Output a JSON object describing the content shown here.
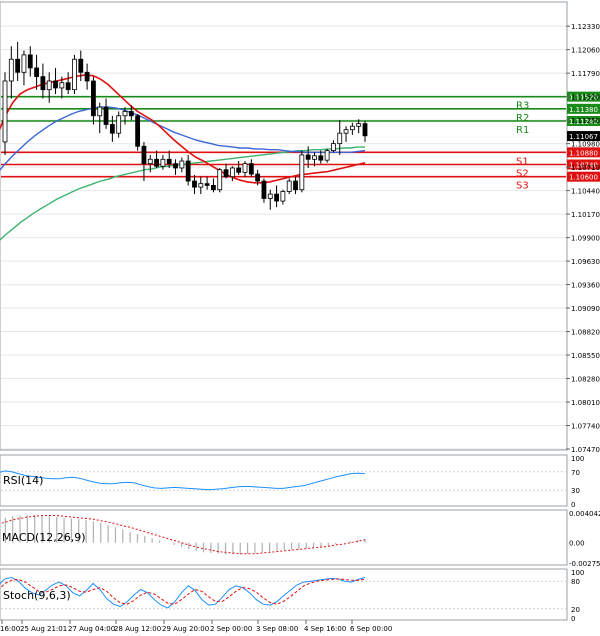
{
  "chart_data": {
    "type": "candlestick",
    "main": {
      "y_ticks": [
        "1.12330",
        "1.12060",
        "1.11790",
        "1.11520",
        "1.11250",
        "1.10980",
        "1.10710",
        "1.10440",
        "1.10170",
        "1.09900",
        "1.09630",
        "1.09360",
        "1.09090",
        "1.08820",
        "1.08550",
        "1.08280",
        "1.08010",
        "1.07740",
        "1.07470"
      ],
      "ylim": [
        1.0747,
        1.1247
      ],
      "current_price": "1.11067",
      "levels": [
        {
          "name": "R3",
          "price": 1.1152,
          "label": "1.11520",
          "color": "#1a8a1a"
        },
        {
          "name": "R2",
          "price": 1.1138,
          "label": "1.11380",
          "color": "#1a8a1a"
        },
        {
          "name": "R1",
          "price": 1.1124,
          "label": "1.11240",
          "color": "#1a8a1a"
        },
        {
          "name": "S1",
          "price": 1.1088,
          "label": "1.10880",
          "color": "#e01010"
        },
        {
          "name": "S2",
          "price": 1.1074,
          "label": "1.10740",
          "color": "#e01010"
        },
        {
          "name": "S3",
          "price": 1.106,
          "label": "1.10600",
          "color": "#e01010"
        }
      ],
      "candles": [
        [
          1.11,
          1.118,
          1.1085,
          1.117
        ],
        [
          1.117,
          1.121,
          1.115,
          1.1195
        ],
        [
          1.1195,
          1.1215,
          1.117,
          1.118
        ],
        [
          1.118,
          1.1205,
          1.1165,
          1.12
        ],
        [
          1.12,
          1.121,
          1.1175,
          1.1185
        ],
        [
          1.1185,
          1.12,
          1.116,
          1.1175
        ],
        [
          1.1175,
          1.119,
          1.115,
          1.116
        ],
        [
          1.116,
          1.118,
          1.1145,
          1.117
        ],
        [
          1.117,
          1.1185,
          1.1155,
          1.1162
        ],
        [
          1.1162,
          1.1175,
          1.115,
          1.1168
        ],
        [
          1.1168,
          1.118,
          1.1155,
          1.116
        ],
        [
          1.116,
          1.12,
          1.1155,
          1.1195
        ],
        [
          1.1195,
          1.1205,
          1.117,
          1.118
        ],
        [
          1.118,
          1.119,
          1.116,
          1.117
        ],
        [
          1.117,
          1.1175,
          1.112,
          1.113
        ],
        [
          1.113,
          1.1145,
          1.111,
          1.114
        ],
        [
          1.114,
          1.115,
          1.1115,
          1.112
        ],
        [
          1.112,
          1.113,
          1.11,
          1.111
        ],
        [
          1.111,
          1.1135,
          1.1105,
          1.113
        ],
        [
          1.113,
          1.114,
          1.112,
          1.1135
        ],
        [
          1.1135,
          1.1142,
          1.1125,
          1.113
        ],
        [
          1.113,
          1.1132,
          1.109,
          1.1095
        ],
        [
          1.1095,
          1.11,
          1.1055,
          1.1075
        ],
        [
          1.1075,
          1.1085,
          1.1065,
          1.108
        ],
        [
          1.108,
          1.109,
          1.107,
          1.1072
        ],
        [
          1.1072,
          1.1085,
          1.1068,
          1.108
        ],
        [
          1.108,
          1.109,
          1.107,
          1.1075
        ],
        [
          1.1075,
          1.108,
          1.1062,
          1.107
        ],
        [
          1.107,
          1.1082,
          1.1065,
          1.1078
        ],
        [
          1.1078,
          1.1085,
          1.105,
          1.1055
        ],
        [
          1.1055,
          1.1062,
          1.104,
          1.1048
        ],
        [
          1.1048,
          1.106,
          1.104,
          1.1052
        ],
        [
          1.1052,
          1.106,
          1.1045,
          1.105
        ],
        [
          1.105,
          1.1058,
          1.1042,
          1.1045
        ],
        [
          1.1045,
          1.107,
          1.1042,
          1.1068
        ],
        [
          1.1068,
          1.1075,
          1.1058,
          1.106
        ],
        [
          1.106,
          1.1072,
          1.1055,
          1.107
        ],
        [
          1.107,
          1.1078,
          1.1062,
          1.1065
        ],
        [
          1.1065,
          1.1078,
          1.106,
          1.1075
        ],
        [
          1.1075,
          1.108,
          1.106,
          1.1063
        ],
        [
          1.1063,
          1.1068,
          1.105,
          1.1055
        ],
        [
          1.1055,
          1.1058,
          1.103,
          1.1035
        ],
        [
          1.1035,
          1.1045,
          1.1022,
          1.104
        ],
        [
          1.104,
          1.105,
          1.1025,
          1.1032
        ],
        [
          1.1032,
          1.1045,
          1.1028,
          1.1043
        ],
        [
          1.1043,
          1.1058,
          1.104,
          1.1055
        ],
        [
          1.1055,
          1.106,
          1.104,
          1.1045
        ],
        [
          1.1045,
          1.109,
          1.1042,
          1.1085
        ],
        [
          1.1085,
          1.1095,
          1.107,
          1.108
        ],
        [
          1.108,
          1.1088,
          1.1072,
          1.1084
        ],
        [
          1.1084,
          1.109,
          1.1075,
          1.1079
        ],
        [
          1.1079,
          1.1092,
          1.1076,
          1.109
        ],
        [
          1.109,
          1.1102,
          1.1088,
          1.1098
        ],
        [
          1.1098,
          1.1125,
          1.1085,
          1.111
        ],
        [
          1.111,
          1.1118,
          1.11,
          1.1114
        ],
        [
          1.1114,
          1.1122,
          1.1108,
          1.1118
        ],
        [
          1.1118,
          1.1126,
          1.111,
          1.1121
        ],
        [
          1.1121,
          1.1124,
          1.11,
          1.1107
        ]
      ],
      "ma_fast": [
        1.111,
        1.113,
        1.1145,
        1.1155,
        1.116,
        1.1163,
        1.1166,
        1.1168,
        1.117,
        1.1172,
        1.1174,
        1.1176,
        1.1177,
        1.1176,
        1.1172,
        1.1166,
        1.1158,
        1.115,
        1.1142,
        1.1135,
        1.113,
        1.1125,
        1.1118,
        1.111,
        1.1102,
        1.1095,
        1.1088,
        1.1082,
        1.1078,
        1.1073,
        1.1068,
        1.1063,
        1.1059,
        1.1056,
        1.1054,
        1.1053,
        1.1053,
        1.1054,
        1.1056,
        1.1058,
        1.106,
        1.1062,
        1.1063,
        1.1064,
        1.1065,
        1.1066,
        1.1068,
        1.107,
        1.1072,
        1.1074,
        1.1076
      ],
      "ma_mid": [
        1.1065,
        1.1075,
        1.1084,
        1.1092,
        1.11,
        1.1107,
        1.1113,
        1.1119,
        1.1124,
        1.1128,
        1.1132,
        1.1135,
        1.1137,
        1.1139,
        1.114,
        1.114,
        1.1139,
        1.1137,
        1.1134,
        1.1131,
        1.1127,
        1.1123,
        1.1119,
        1.1115,
        1.1111,
        1.1108,
        1.1105,
        1.1102,
        1.11,
        1.1098,
        1.1096,
        1.1095,
        1.1094,
        1.1093,
        1.1093,
        1.1092,
        1.1092,
        1.1091,
        1.1091,
        1.109,
        1.1089,
        1.1089,
        1.1088,
        1.1088,
        1.1088,
        1.1088,
        1.1088,
        1.1088,
        1.1088,
        1.1089,
        1.109
      ],
      "ma_slow": [
        1.0985,
        1.0993,
        1.1,
        1.1007,
        1.1013,
        1.1019,
        1.1024,
        1.1029,
        1.1034,
        1.1038,
        1.1042,
        1.1046,
        1.1049,
        1.1052,
        1.1055,
        1.1057,
        1.106,
        1.1062,
        1.1064,
        1.1066,
        1.1068,
        1.1069,
        1.1071,
        1.1072,
        1.1073,
        1.1074,
        1.1075,
        1.1076,
        1.1077,
        1.1078,
        1.1079,
        1.108,
        1.1081,
        1.1082,
        1.1083,
        1.1084,
        1.1085,
        1.1086,
        1.1087,
        1.1088,
        1.1089,
        1.109,
        1.109,
        1.1091,
        1.1091,
        1.1092,
        1.1092,
        1.1093,
        1.1093,
        1.1094,
        1.1094
      ]
    },
    "x_labels": [
      "16:00",
      "25 Aug 21:01",
      "27 Aug 04:00",
      "28 Aug 12:00",
      "29 Aug 20:00",
      "2 Sep 00:00",
      "3 Sep 08:00",
      "4 Sep 16:00",
      "6 Sep 00:00"
    ],
    "rsi": {
      "label": "RSI(14)",
      "ticks": [
        "100",
        "70",
        "30",
        "0"
      ],
      "values": [
        68,
        72,
        70,
        66,
        62,
        60,
        58,
        56,
        55,
        55,
        57,
        58,
        56,
        52,
        48,
        45,
        44,
        44,
        46,
        47,
        46,
        42,
        38,
        35,
        34,
        35,
        36,
        35,
        34,
        33,
        32,
        31,
        32,
        33,
        35,
        37,
        38,
        38,
        37,
        36,
        35,
        34,
        34,
        36,
        38,
        40,
        44,
        48,
        52,
        56,
        60,
        63,
        66,
        67,
        66
      ]
    },
    "macd": {
      "label": "MACD(12,26,9)",
      "ticks": [
        "0.004042",
        "0.00",
        "-0.002755"
      ],
      "histogram": [
        0.003,
        0.0034,
        0.0036,
        0.0037,
        0.0038,
        0.0038,
        0.0037,
        0.0036,
        0.0035,
        0.0034,
        0.0033,
        0.0032,
        0.0031,
        0.0029,
        0.0027,
        0.0024,
        0.0021,
        0.0018,
        0.0015,
        0.0012,
        0.0009,
        0.0006,
        0.0003,
        0.0,
        -0.0003,
        -0.0006,
        -0.0009,
        -0.0011,
        -0.0013,
        -0.0014,
        -0.0015,
        -0.0016,
        -0.0016,
        -0.0016,
        -0.0015,
        -0.0014,
        -0.0013,
        -0.0012,
        -0.0011,
        -0.001,
        -0.0009,
        -0.0009,
        -0.0008,
        -0.0007,
        -0.0006,
        -0.0004,
        -0.0002,
        0.0,
        0.0002,
        0.0004,
        0.0005
      ],
      "signal": [
        0.0025,
        0.0028,
        0.0031,
        0.0033,
        0.0035,
        0.0036,
        0.0037,
        0.0037,
        0.0037,
        0.0036,
        0.0035,
        0.0034,
        0.0033,
        0.0032,
        0.003,
        0.0028,
        0.0026,
        0.0023,
        0.0021,
        0.0018,
        0.0015,
        0.0012,
        0.0009,
        0.0006,
        0.0003,
        0.0,
        -0.0003,
        -0.0006,
        -0.0008,
        -0.001,
        -0.0012,
        -0.0013,
        -0.0014,
        -0.0015,
        -0.0015,
        -0.0015,
        -0.0014,
        -0.0013,
        -0.0012,
        -0.0011,
        -0.001,
        -0.0009,
        -0.0008,
        -0.0007,
        -0.0006,
        -0.0005,
        -0.0003,
        -0.0002,
        0.0,
        0.0002,
        0.0004
      ]
    },
    "stoch": {
      "label": "Stoch(9,6,3)",
      "ticks": [
        "100",
        "80",
        "20",
        "0"
      ],
      "k": [
        70,
        85,
        88,
        80,
        65,
        55,
        50,
        60,
        72,
        78,
        70,
        55,
        48,
        60,
        75,
        62,
        42,
        30,
        25,
        35,
        50,
        62,
        55,
        40,
        28,
        22,
        35,
        55,
        70,
        60,
        40,
        28,
        30,
        45,
        62,
        70,
        66,
        55,
        40,
        30,
        28,
        35,
        48,
        60,
        72,
        78,
        80,
        82,
        84,
        86,
        85,
        80,
        78,
        84,
        88
      ],
      "d": [
        60,
        75,
        82,
        84,
        78,
        68,
        58,
        56,
        62,
        70,
        72,
        66,
        58,
        56,
        62,
        66,
        58,
        44,
        33,
        30,
        38,
        50,
        56,
        52,
        42,
        32,
        30,
        40,
        52,
        62,
        58,
        46,
        36,
        36,
        46,
        58,
        66,
        64,
        56,
        44,
        34,
        30,
        36,
        46,
        58,
        70,
        76,
        80,
        82,
        84,
        85,
        84,
        82,
        82,
        84
      ]
    }
  }
}
